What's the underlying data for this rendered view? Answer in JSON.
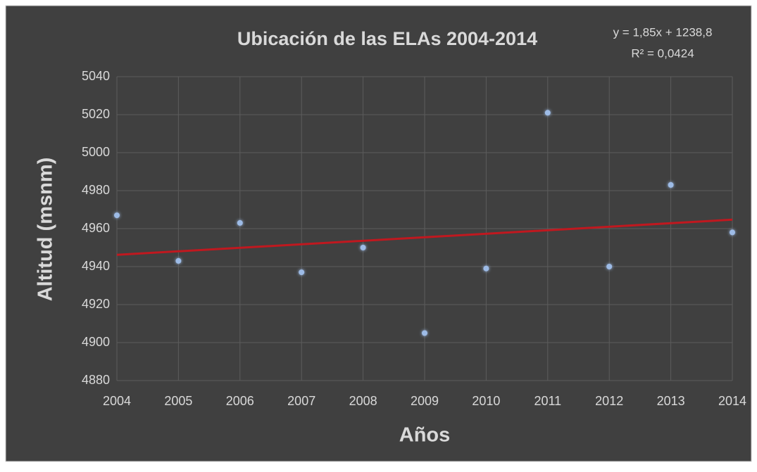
{
  "chart_data": {
    "type": "scatter",
    "title": "Ubicación de las ELAs 2004-2014",
    "x_label": "Años",
    "y_label": "Altitud (msnm)",
    "x": [
      2004,
      2005,
      2006,
      2007,
      2008,
      2009,
      2010,
      2011,
      2012,
      2013,
      2014
    ],
    "values": [
      4967,
      4943,
      4963,
      4937,
      4950,
      4905,
      4939,
      5021,
      4940,
      4983,
      4958
    ],
    "color": "#9dbbe6",
    "trendline": {
      "slope": 1.85,
      "intercept": 1238.8,
      "color": "#c0181f",
      "label": "y = 1,85x + 1238,8",
      "r2_label": "R² = 0,0424"
    },
    "xlim": [
      2004,
      2014
    ],
    "xticks": [
      2004,
      2005,
      2006,
      2007,
      2008,
      2009,
      2010,
      2011,
      2012,
      2013,
      2014
    ],
    "ylim": [
      4880,
      5040
    ],
    "yticks": [
      4880,
      4900,
      4920,
      4940,
      4960,
      4980,
      5000,
      5020,
      5040
    ],
    "grid": true
  }
}
